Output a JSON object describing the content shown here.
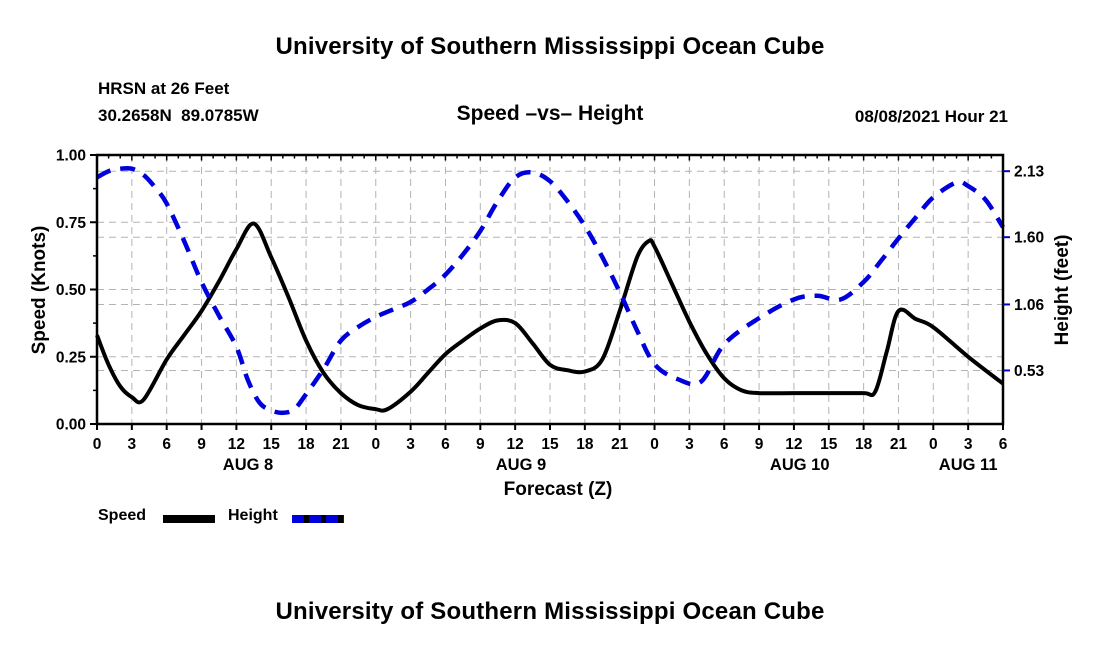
{
  "header": {
    "title": "University of Southern Mississippi Ocean Cube",
    "station": "HRSN at 26 Feet",
    "coordinates": "30.2658N  89.0785W",
    "chart_title": "Speed –vs– Height",
    "datetime": "08/08/2021 Hour 21"
  },
  "footer": {
    "title": "University of Southern Mississippi Ocean Cube"
  },
  "legend": {
    "speed_label": "Speed",
    "height_label": "Height"
  },
  "colors": {
    "speed": "#000000",
    "height": "#0000dd",
    "grid": "#b3b3b3",
    "axis": "#000000",
    "right_tick": "#0000dd",
    "background": "#ffffff"
  },
  "chart_data": {
    "type": "line",
    "title": "Speed –vs– Height",
    "xlabel": "Forecast (Z)",
    "ylabel_left": "Speed (Knots)",
    "ylabel_right": "Height (feet)",
    "x_unit": "hours from 2021-08-08 00Z, ticks every 3 h",
    "xlim": [
      0,
      78
    ],
    "x_tick_step_hours": 3,
    "x_tick_labels": [
      "0",
      "3",
      "6",
      "9",
      "12",
      "15",
      "18",
      "21",
      "0",
      "3",
      "6",
      "9",
      "12",
      "15",
      "18",
      "21",
      "0",
      "3",
      "6",
      "9",
      "12",
      "15",
      "18",
      "21",
      "0",
      "3",
      "6"
    ],
    "day_labels": [
      {
        "label": "AUG 8",
        "hour": 13
      },
      {
        "label": "AUG 9",
        "hour": 36.5
      },
      {
        "label": "AUG 10",
        "hour": 60.5
      },
      {
        "label": "AUG 11",
        "hour": 75
      }
    ],
    "ylim_left": [
      0,
      1.0
    ],
    "yticks_left": [
      {
        "label": "0.00",
        "value": 0
      },
      {
        "label": "0.25",
        "value": 0.25
      },
      {
        "label": "0.50",
        "value": 0.5
      },
      {
        "label": "0.75",
        "value": 0.75
      },
      {
        "label": "1.00",
        "value": 1.0
      }
    ],
    "ylim_right": [
      0.1,
      2.26
    ],
    "yticks_right": [
      {
        "label": "0.53",
        "value": 0.53
      },
      {
        "label": "1.06",
        "value": 1.06
      },
      {
        "label": "1.60",
        "value": 1.6
      },
      {
        "label": "2.13",
        "value": 2.13
      }
    ],
    "grid": true,
    "legend_position": "below-left",
    "series": [
      {
        "name": "Speed",
        "axis": "left",
        "unit": "knots",
        "style": "solid",
        "color": "#000000",
        "points": [
          [
            0,
            0.33
          ],
          [
            1,
            0.22
          ],
          [
            2,
            0.14
          ],
          [
            3,
            0.1
          ],
          [
            4,
            0.09
          ],
          [
            6,
            0.24
          ],
          [
            7.5,
            0.33
          ],
          [
            9,
            0.42
          ],
          [
            10.5,
            0.53
          ],
          [
            12,
            0.65
          ],
          [
            13.5,
            0.745
          ],
          [
            15,
            0.62
          ],
          [
            16.5,
            0.47
          ],
          [
            18,
            0.31
          ],
          [
            19.5,
            0.19
          ],
          [
            21,
            0.115
          ],
          [
            22.5,
            0.07
          ],
          [
            24,
            0.055
          ],
          [
            25,
            0.055
          ],
          [
            27,
            0.12
          ],
          [
            28.5,
            0.19
          ],
          [
            30,
            0.26
          ],
          [
            31.5,
            0.31
          ],
          [
            33,
            0.355
          ],
          [
            34.5,
            0.385
          ],
          [
            36,
            0.375
          ],
          [
            37.5,
            0.3
          ],
          [
            39,
            0.22
          ],
          [
            40.5,
            0.2
          ],
          [
            42,
            0.195
          ],
          [
            43.5,
            0.24
          ],
          [
            45,
            0.42
          ],
          [
            46.5,
            0.62
          ],
          [
            47.5,
            0.68
          ],
          [
            48,
            0.66
          ],
          [
            49.5,
            0.52
          ],
          [
            51,
            0.38
          ],
          [
            52.5,
            0.26
          ],
          [
            54,
            0.17
          ],
          [
            55.5,
            0.125
          ],
          [
            57,
            0.115
          ],
          [
            60,
            0.115
          ],
          [
            63,
            0.115
          ],
          [
            66,
            0.115
          ],
          [
            67,
            0.12
          ],
          [
            68,
            0.27
          ],
          [
            69,
            0.42
          ],
          [
            70.5,
            0.39
          ],
          [
            72,
            0.36
          ],
          [
            75,
            0.25
          ],
          [
            78,
            0.15
          ]
        ]
      },
      {
        "name": "Height",
        "axis": "right",
        "unit": "feet",
        "style": "dashed",
        "color": "#0000dd",
        "points": [
          [
            0,
            2.08
          ],
          [
            1,
            2.13
          ],
          [
            2,
            2.15
          ],
          [
            3,
            2.15
          ],
          [
            4,
            2.1
          ],
          [
            5,
            2.0
          ],
          [
            6,
            1.87
          ],
          [
            7.5,
            1.57
          ],
          [
            9,
            1.24
          ],
          [
            10.5,
            0.97
          ],
          [
            12,
            0.72
          ],
          [
            13,
            0.45
          ],
          [
            14,
            0.27
          ],
          [
            15,
            0.21
          ],
          [
            16,
            0.19
          ],
          [
            17,
            0.22
          ],
          [
            18,
            0.34
          ],
          [
            19.5,
            0.54
          ],
          [
            21,
            0.77
          ],
          [
            22.5,
            0.88
          ],
          [
            24,
            0.96
          ],
          [
            25.5,
            1.02
          ],
          [
            27,
            1.08
          ],
          [
            28.5,
            1.18
          ],
          [
            30,
            1.3
          ],
          [
            31.5,
            1.46
          ],
          [
            33,
            1.65
          ],
          [
            34.5,
            1.89
          ],
          [
            36,
            2.08
          ],
          [
            37.5,
            2.12
          ],
          [
            39,
            2.05
          ],
          [
            40.5,
            1.89
          ],
          [
            42,
            1.69
          ],
          [
            43.5,
            1.44
          ],
          [
            45,
            1.16
          ],
          [
            46.5,
            0.85
          ],
          [
            48,
            0.58
          ],
          [
            50,
            0.46
          ],
          [
            52,
            0.44
          ],
          [
            54,
            0.74
          ],
          [
            57,
            0.95
          ],
          [
            60,
            1.1
          ],
          [
            62,
            1.13
          ],
          [
            64,
            1.1
          ],
          [
            66,
            1.24
          ],
          [
            67.5,
            1.41
          ],
          [
            69,
            1.59
          ],
          [
            70.5,
            1.76
          ],
          [
            72,
            1.92
          ],
          [
            74,
            2.04
          ],
          [
            75,
            2.01
          ],
          [
            76.5,
            1.9
          ],
          [
            78,
            1.68
          ]
        ]
      }
    ]
  }
}
